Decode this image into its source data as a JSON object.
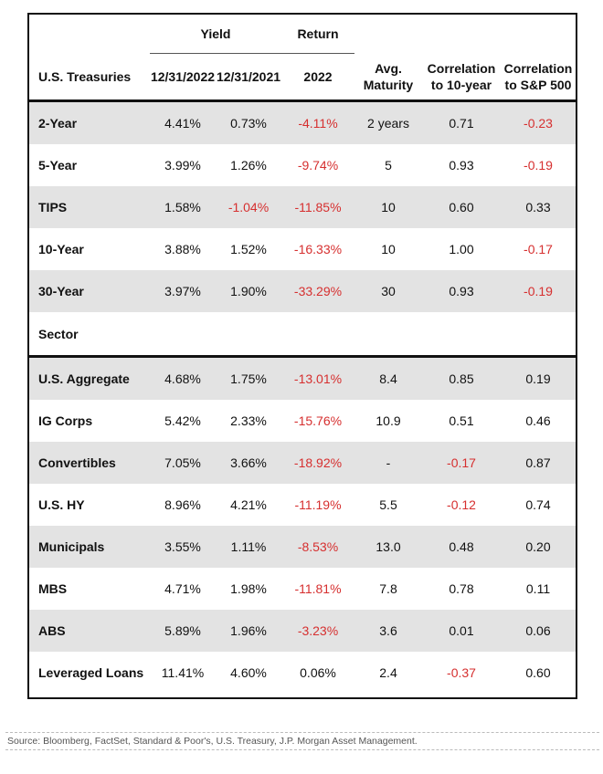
{
  "header": {
    "yield_group": "Yield",
    "return_group": "Return",
    "col_name": "U.S. Treasuries",
    "col_yield_2022": "12/31/2022",
    "col_yield_2021": "12/31/2021",
    "col_return": "2022",
    "col_maturity_1": "Avg.",
    "col_maturity_2": "Maturity",
    "col_corr10_1": "Correlation",
    "col_corr10_2": "to 10-year",
    "col_corrsp_1": "Correlation",
    "col_corrsp_2": "to S&P 500"
  },
  "treasuries": [
    {
      "name": "2-Year",
      "y22": "4.41%",
      "y21": "0.73%",
      "ret": "-4.11%",
      "mat": "2 years",
      "c10": "0.71",
      "csp": "-0.23"
    },
    {
      "name": "5-Year",
      "y22": "3.99%",
      "y21": "1.26%",
      "ret": "-9.74%",
      "mat": "5",
      "c10": "0.93",
      "csp": "-0.19"
    },
    {
      "name": "TIPS",
      "y22": "1.58%",
      "y21": "-1.04%",
      "ret": "-11.85%",
      "mat": "10",
      "c10": "0.60",
      "csp": "0.33"
    },
    {
      "name": "10-Year",
      "y22": "3.88%",
      "y21": "1.52%",
      "ret": "-16.33%",
      "mat": "10",
      "c10": "1.00",
      "csp": "-0.17"
    },
    {
      "name": "30-Year",
      "y22": "3.97%",
      "y21": "1.90%",
      "ret": "-33.29%",
      "mat": "30",
      "c10": "0.93",
      "csp": "-0.19"
    }
  ],
  "sector_label": "Sector",
  "sectors": [
    {
      "name": "U.S. Aggregate",
      "y22": "4.68%",
      "y21": "1.75%",
      "ret": "-13.01%",
      "mat": "8.4",
      "c10": "0.85",
      "csp": "0.19"
    },
    {
      "name": "IG Corps",
      "y22": "5.42%",
      "y21": "2.33%",
      "ret": "-15.76%",
      "mat": "10.9",
      "c10": "0.51",
      "csp": "0.46"
    },
    {
      "name": "Convertibles",
      "y22": "7.05%",
      "y21": "3.66%",
      "ret": "-18.92%",
      "mat": "-",
      "c10": "-0.17",
      "csp": "0.87"
    },
    {
      "name": "U.S. HY",
      "y22": "8.96%",
      "y21": "4.21%",
      "ret": "-11.19%",
      "mat": "5.5",
      "c10": "-0.12",
      "csp": "0.74"
    },
    {
      "name": "Municipals",
      "y22": "3.55%",
      "y21": "1.11%",
      "ret": "-8.53%",
      "mat": "13.0",
      "c10": "0.48",
      "csp": "0.20"
    },
    {
      "name": "MBS",
      "y22": "4.71%",
      "y21": "1.98%",
      "ret": "-11.81%",
      "mat": "7.8",
      "c10": "0.78",
      "csp": "0.11"
    },
    {
      "name": "ABS",
      "y22": "5.89%",
      "y21": "1.96%",
      "ret": "-3.23%",
      "mat": "3.6",
      "c10": "0.01",
      "csp": "0.06"
    },
    {
      "name": "Leveraged Loans",
      "y22": "11.41%",
      "y21": "4.60%",
      "ret": "0.06%",
      "mat": "2.4",
      "c10": "-0.37",
      "csp": "0.60"
    }
  ],
  "source": "Source: Bloomberg, FactSet, Standard & Poor's, U.S. Treasury, J.P. Morgan Asset Management.",
  "colors": {
    "negative": "#d62f2f",
    "shade": "#e3e3e3",
    "text": "#111111"
  }
}
